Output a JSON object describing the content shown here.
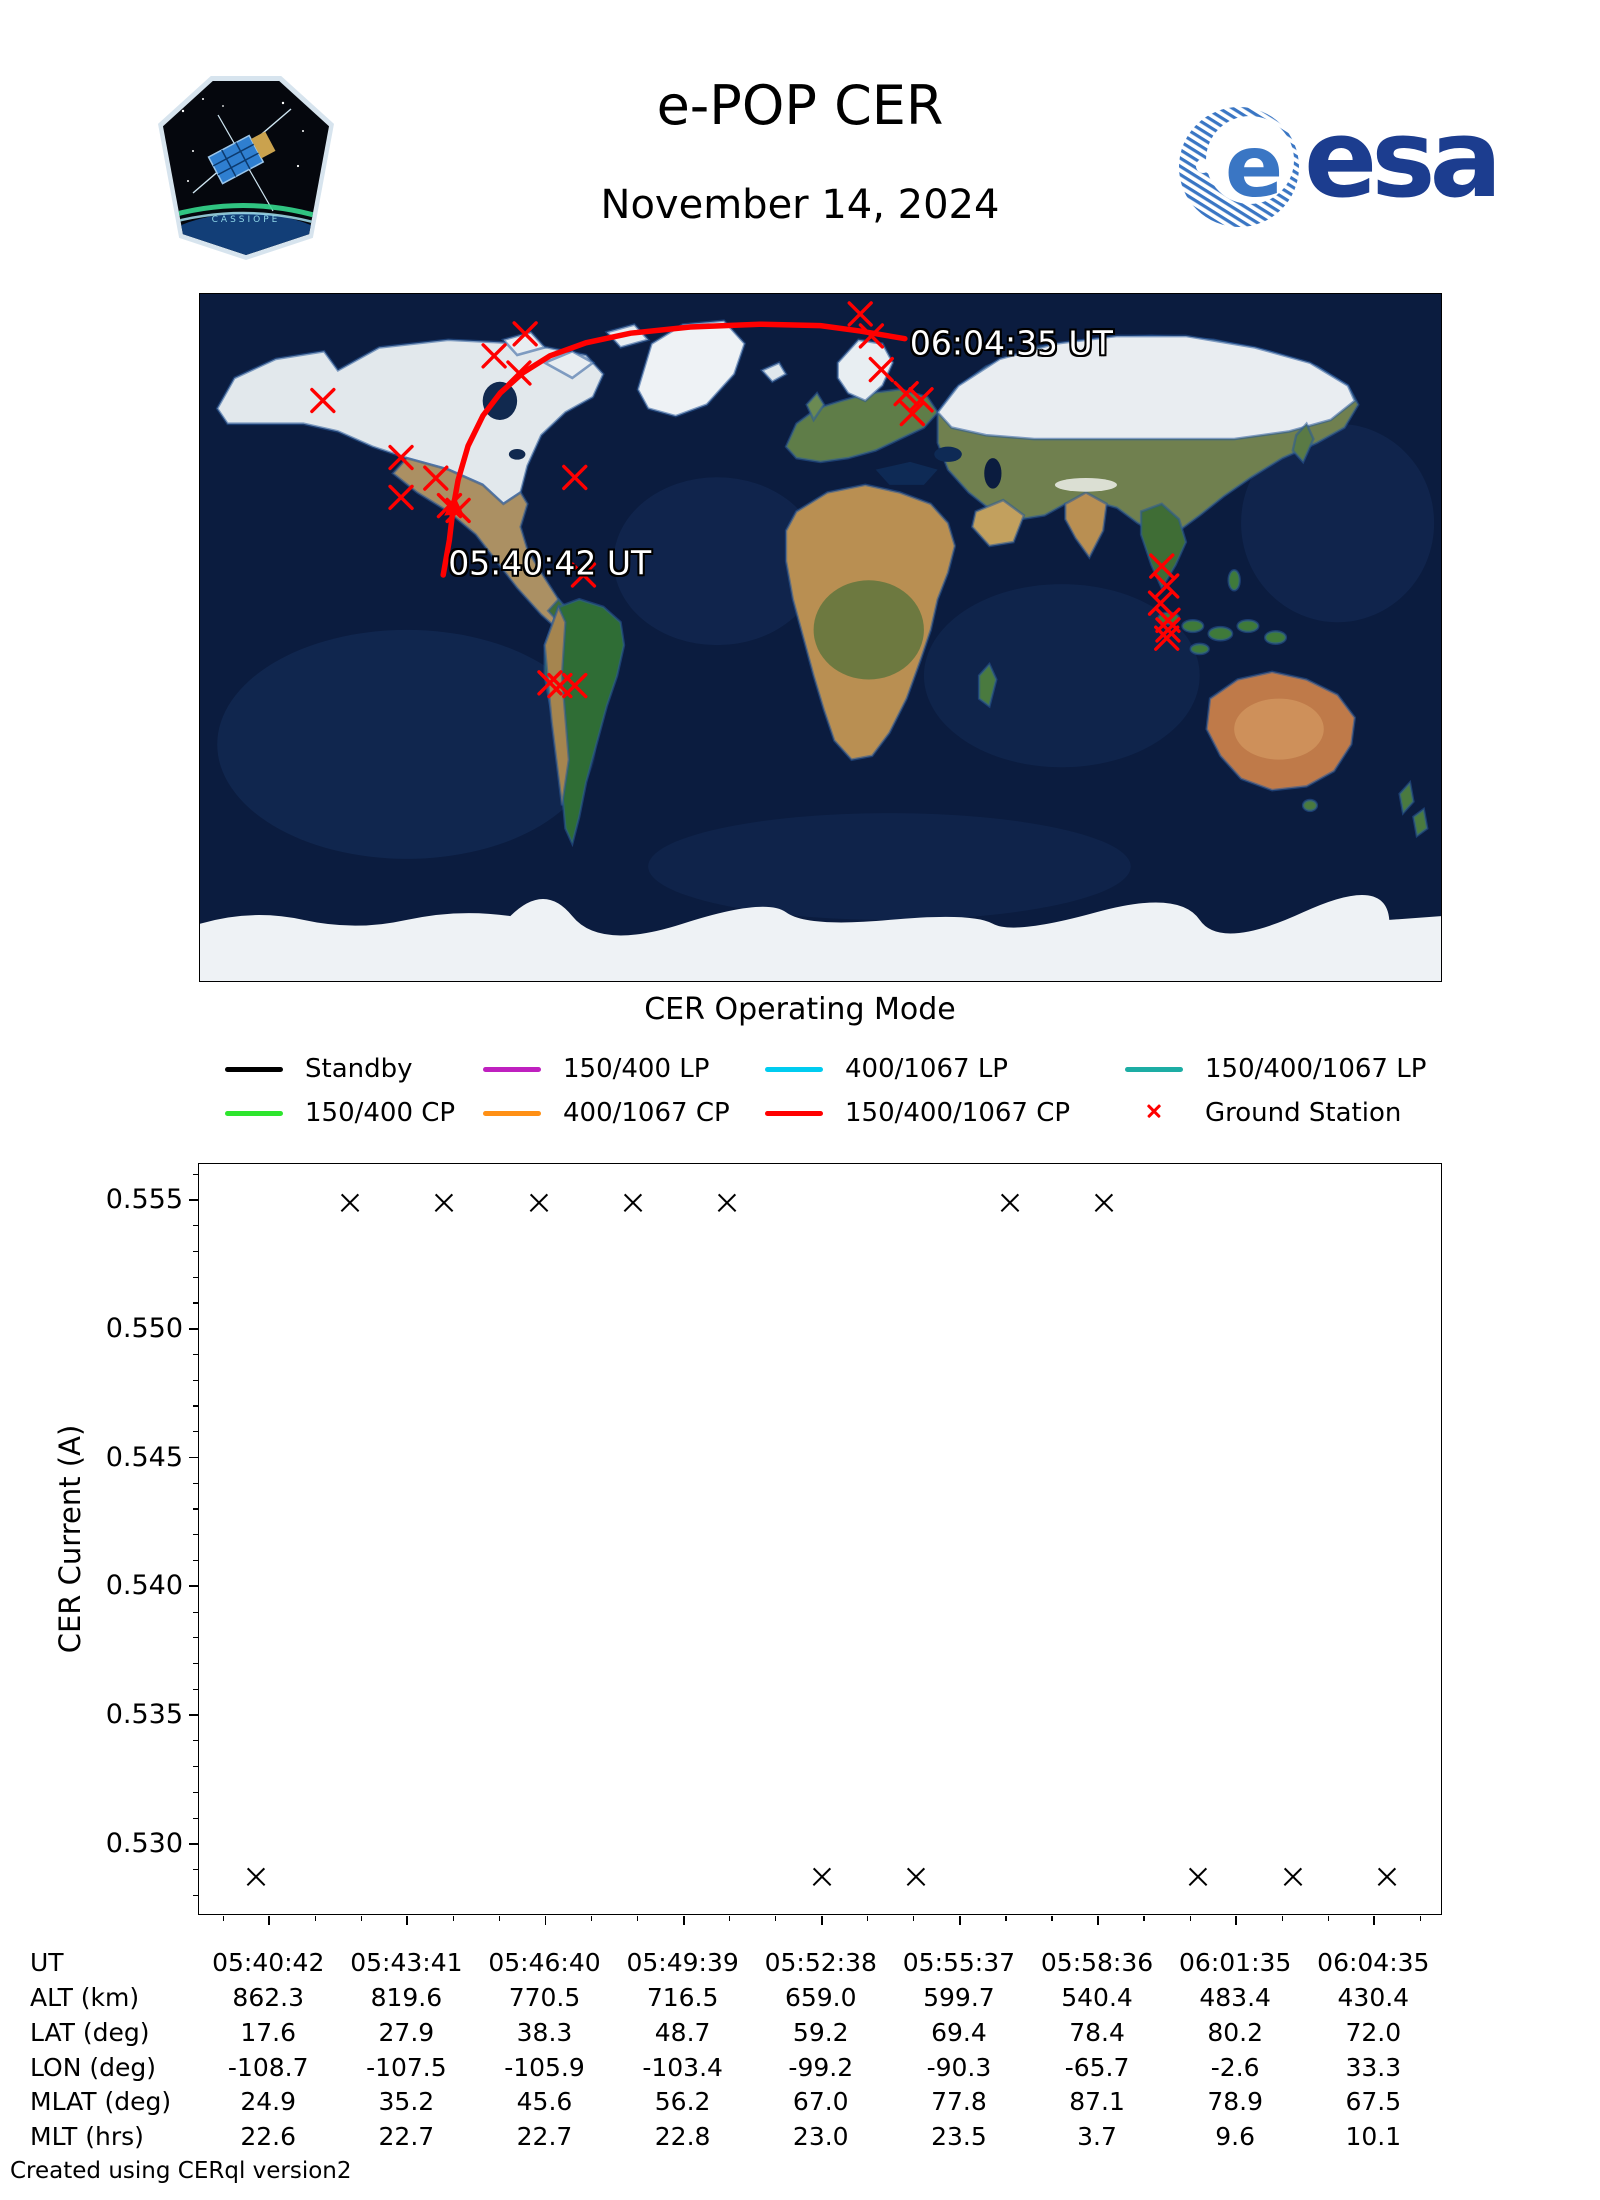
{
  "header": {
    "title": "e-POP CER",
    "date": "November 14, 2024",
    "patch_name": "CASSIOPE",
    "esa_wordmark": "esa"
  },
  "map": {
    "caption": "CER Operating Mode",
    "track_color": "#ff0000",
    "station_color": "#ff0000",
    "time_labels": [
      {
        "text": "05:40:42 UT",
        "fx": 0.2,
        "fy": 0.392
      },
      {
        "text": "06:04:35 UT",
        "fx": 0.572,
        "fy": 0.072
      }
    ],
    "track_f": [
      [
        0.196,
        0.409
      ],
      [
        0.201,
        0.358
      ],
      [
        0.204,
        0.311
      ],
      [
        0.208,
        0.271
      ],
      [
        0.216,
        0.221
      ],
      [
        0.228,
        0.177
      ],
      [
        0.242,
        0.144
      ],
      [
        0.26,
        0.115
      ],
      [
        0.282,
        0.09
      ],
      [
        0.311,
        0.071
      ],
      [
        0.347,
        0.057
      ],
      [
        0.395,
        0.048
      ],
      [
        0.451,
        0.044
      ],
      [
        0.5,
        0.046
      ],
      [
        0.532,
        0.054
      ],
      [
        0.568,
        0.065
      ]
    ],
    "arrow_f": [
      0.204,
      0.311
    ],
    "ground_stations_f": [
      [
        0.099,
        0.155
      ],
      [
        0.262,
        0.058
      ],
      [
        0.237,
        0.09
      ],
      [
        0.257,
        0.115
      ],
      [
        0.162,
        0.238
      ],
      [
        0.19,
        0.268
      ],
      [
        0.162,
        0.296
      ],
      [
        0.201,
        0.308
      ],
      [
        0.208,
        0.315
      ],
      [
        0.302,
        0.267
      ],
      [
        0.309,
        0.409
      ],
      [
        0.282,
        0.566
      ],
      [
        0.29,
        0.57
      ],
      [
        0.302,
        0.57
      ],
      [
        0.532,
        0.029
      ],
      [
        0.541,
        0.061
      ],
      [
        0.549,
        0.11
      ],
      [
        0.569,
        0.145
      ],
      [
        0.581,
        0.154
      ],
      [
        0.574,
        0.174
      ],
      [
        0.775,
        0.396
      ],
      [
        0.779,
        0.425
      ],
      [
        0.774,
        0.45
      ],
      [
        0.78,
        0.475
      ],
      [
        0.78,
        0.489
      ],
      [
        0.779,
        0.501
      ]
    ]
  },
  "legend": {
    "title": "CER Operating Mode",
    "items": [
      {
        "label": "Standby",
        "color": "#000000",
        "type": "line"
      },
      {
        "label": "150/400 LP",
        "color": "#bf20bf",
        "type": "line"
      },
      {
        "label": "400/1067 LP",
        "color": "#00ccf0",
        "type": "line"
      },
      {
        "label": "150/400/1067 LP",
        "color": "#1dada4",
        "type": "line"
      },
      {
        "label": "150/400 CP",
        "color": "#2ee52e",
        "type": "line"
      },
      {
        "label": "400/1067 CP",
        "color": "#ff9015",
        "type": "line"
      },
      {
        "label": "150/400/1067 CP",
        "color": "#ff0000",
        "type": "line"
      },
      {
        "label": "Ground Station",
        "color": "#ff0000",
        "type": "x"
      }
    ]
  },
  "chart_data": {
    "type": "scatter",
    "title": "",
    "xlabel": "UT",
    "ylabel": "CER Current (A)",
    "grid": false,
    "ylim": [
      0.5272,
      0.5564
    ],
    "yticks": [
      "0.530",
      "0.535",
      "0.540",
      "0.545",
      "0.550",
      "0.555"
    ],
    "xlim_seconds": [
      -91,
      1521
    ],
    "xticks_seconds": [
      0,
      179,
      358,
      537,
      716,
      895,
      1074,
      1253,
      1432
    ],
    "xtick_labels": [
      "05:40:42",
      "05:43:41",
      "05:46:40",
      "05:49:39",
      "05:52:38",
      "05:55:37",
      "05:58:36",
      "06:01:35",
      "06:04:35"
    ],
    "series": [
      {
        "name": "Standby",
        "marker": "x",
        "color": "#000000",
        "points": [
          {
            "time": "05:40:25",
            "t_s": -17,
            "y": 0.5287
          },
          {
            "time": "05:42:27",
            "t_s": 105,
            "y": 0.5549
          },
          {
            "time": "05:44:29",
            "t_s": 227,
            "y": 0.5549
          },
          {
            "time": "05:46:31",
            "t_s": 349,
            "y": 0.5549
          },
          {
            "time": "05:48:33",
            "t_s": 471,
            "y": 0.5549
          },
          {
            "time": "05:50:35",
            "t_s": 593,
            "y": 0.5549
          },
          {
            "time": "05:52:38",
            "t_s": 716,
            "y": 0.5287
          },
          {
            "time": "05:54:40",
            "t_s": 838,
            "y": 0.5287
          },
          {
            "time": "05:56:42",
            "t_s": 960,
            "y": 0.5549
          },
          {
            "time": "05:58:44",
            "t_s": 1082,
            "y": 0.5549
          },
          {
            "time": "06:00:46",
            "t_s": 1204,
            "y": 0.5287
          },
          {
            "time": "06:02:48",
            "t_s": 1326,
            "y": 0.5287
          },
          {
            "time": "06:04:51",
            "t_s": 1449,
            "y": 0.5287
          }
        ]
      }
    ]
  },
  "table": {
    "rows": [
      {
        "label": "UT",
        "values": [
          "05:40:42",
          "05:43:41",
          "05:46:40",
          "05:49:39",
          "05:52:38",
          "05:55:37",
          "05:58:36",
          "06:01:35",
          "06:04:35"
        ]
      },
      {
        "label": "ALT (km)",
        "values": [
          "862.3",
          "819.6",
          "770.5",
          "716.5",
          "659.0",
          "599.7",
          "540.4",
          "483.4",
          "430.4"
        ]
      },
      {
        "label": "LAT (deg)",
        "values": [
          "17.6",
          "27.9",
          "38.3",
          "48.7",
          "59.2",
          "69.4",
          "78.4",
          "80.2",
          "72.0"
        ]
      },
      {
        "label": "LON (deg)",
        "values": [
          "-108.7",
          "-107.5",
          "-105.9",
          "-103.4",
          "-99.2",
          "-90.3",
          "-65.7",
          "-2.6",
          "33.3"
        ]
      },
      {
        "label": "MLAT (deg)",
        "values": [
          "24.9",
          "35.2",
          "45.6",
          "56.2",
          "67.0",
          "77.8",
          "87.1",
          "78.9",
          "67.5"
        ]
      },
      {
        "label": "MLT (hrs)",
        "values": [
          "22.6",
          "22.7",
          "22.7",
          "22.8",
          "23.0",
          "23.5",
          "3.7",
          "9.6",
          "10.1"
        ]
      }
    ]
  },
  "footer": {
    "credit": "Created using CERql version2"
  }
}
